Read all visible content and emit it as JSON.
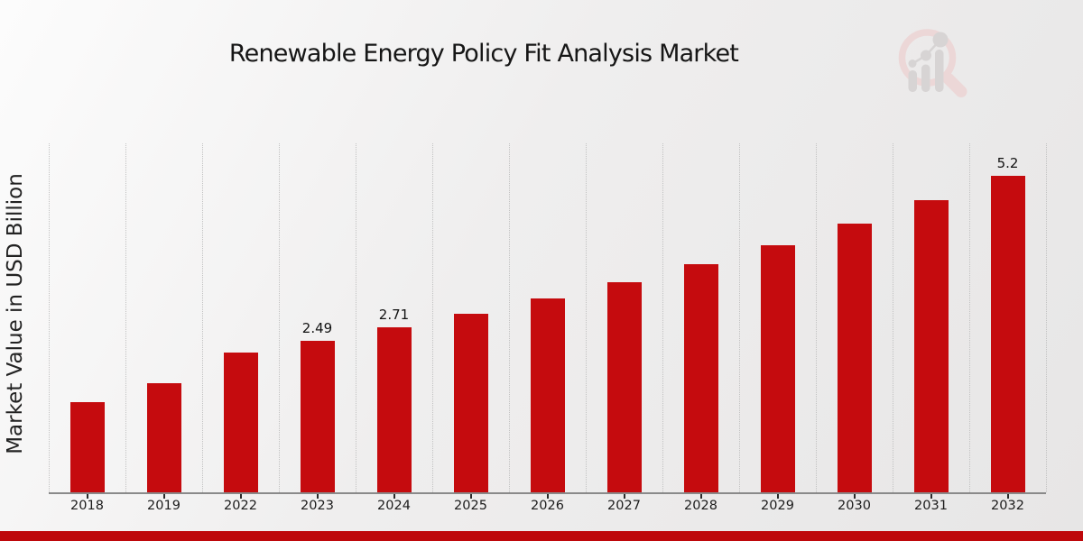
{
  "page": {
    "title": "Renewable Energy Policy Fit Analysis Market"
  },
  "chart_data": {
    "type": "bar",
    "title": "Renewable Energy Policy Fit Analysis Market",
    "xlabel": "",
    "ylabel": "Market Value in USD Billion",
    "categories": [
      "2018",
      "2019",
      "2022",
      "2023",
      "2024",
      "2025",
      "2026",
      "2027",
      "2028",
      "2029",
      "2030",
      "2031",
      "2032"
    ],
    "values": [
      1.49,
      1.8,
      2.3,
      2.49,
      2.71,
      2.94,
      3.19,
      3.46,
      3.76,
      4.07,
      4.42,
      4.8,
      5.2
    ],
    "value_labels": {
      "2023": "2.49",
      "2024": "2.71",
      "2032": "5.2"
    },
    "ylim": [
      0,
      5.74
    ],
    "bar_color": "#c50b0e",
    "grid": "vertical dotted gridlines between categories, no horizontal gridlines, no y-axis tick labels",
    "legend": "none"
  },
  "branding": {
    "logo_icon": "magnifier-bar-chart-watermark-icon",
    "logo_ring_color": "#ecd7d7",
    "logo_bar_color": "#d7d4d4"
  },
  "footer": {
    "accent_bar_color": "#be080b"
  },
  "colors": {
    "bar": "#c50b0e",
    "title_text": "#161616",
    "axis_line": "#8a8a8a",
    "gridline": "#c2c2c2",
    "background_from": "#fcfcfc",
    "background_to": "#e7e6e6"
  }
}
